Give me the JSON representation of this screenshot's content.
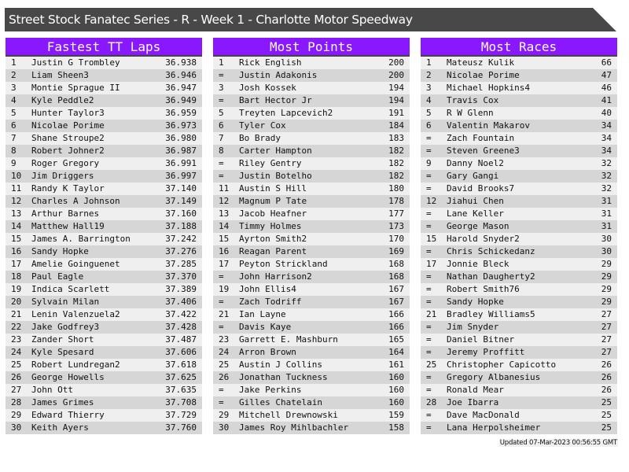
{
  "title": "Street Stock Fanatec Series - R - Week 1 - Charlotte Motor Speedway",
  "updated": "Updated 07-Mar-2023 00:56:55 GMT",
  "colors": {
    "header": "#8a18ff",
    "title_bar": "#484848"
  },
  "panels": [
    {
      "heading": "Fastest TT Laps",
      "rows": [
        [
          "1",
          "Justin G Trombley",
          "36.938"
        ],
        [
          "2",
          "Liam Sheen3",
          "36.946"
        ],
        [
          "3",
          "Montie Sprague II",
          "36.947"
        ],
        [
          "4",
          "Kyle Peddle2",
          "36.949"
        ],
        [
          "5",
          "Hunter Taylor3",
          "36.959"
        ],
        [
          "6",
          "Nicolae Porime",
          "36.973"
        ],
        [
          "7",
          "Shane Stroupe2",
          "36.980"
        ],
        [
          "8",
          "Robert Johner2",
          "36.987"
        ],
        [
          "9",
          "Roger Gregory",
          "36.991"
        ],
        [
          "10",
          "Jim Driggers",
          "36.997"
        ],
        [
          "11",
          "Randy K Taylor",
          "37.140"
        ],
        [
          "12",
          "Charles A Johnson",
          "37.149"
        ],
        [
          "13",
          "Arthur Barnes",
          "37.160"
        ],
        [
          "14",
          "Matthew Hall19",
          "37.188"
        ],
        [
          "15",
          "James A. Barrington",
          "37.242"
        ],
        [
          "16",
          "Sandy Hopke",
          "37.276"
        ],
        [
          "17",
          "Amelie Goinguenet",
          "37.285"
        ],
        [
          "18",
          "Paul Eagle",
          "37.370"
        ],
        [
          "19",
          "Indica Scarlett",
          "37.389"
        ],
        [
          "20",
          "Sylvain Milan",
          "37.406"
        ],
        [
          "21",
          "Lenin Valenzuela2",
          "37.422"
        ],
        [
          "22",
          "Jake Godfrey3",
          "37.428"
        ],
        [
          "23",
          "Zander Short",
          "37.487"
        ],
        [
          "24",
          "Kyle Spesard",
          "37.606"
        ],
        [
          "25",
          "Robert Lundregan2",
          "37.618"
        ],
        [
          "26",
          "George Howells",
          "37.625"
        ],
        [
          "27",
          "John Ott",
          "37.635"
        ],
        [
          "28",
          "James Grimes",
          "37.708"
        ],
        [
          "29",
          "Edward Thierry",
          "37.729"
        ],
        [
          "30",
          "Keith Ayers",
          "37.760"
        ]
      ]
    },
    {
      "heading": "Most Points",
      "rows": [
        [
          "1",
          "Rick English",
          "200"
        ],
        [
          "=",
          "Justin Adakonis",
          "200"
        ],
        [
          "3",
          "Josh Kossek",
          "194"
        ],
        [
          "=",
          "Bart Hector Jr",
          "194"
        ],
        [
          "5",
          "Treyten Lapcevich2",
          "191"
        ],
        [
          "6",
          "Tyler Cox",
          "184"
        ],
        [
          "7",
          "Bo Brady",
          "183"
        ],
        [
          "8",
          "Carter Hampton",
          "182"
        ],
        [
          "=",
          "Riley Gentry",
          "182"
        ],
        [
          "=",
          "Justin Botelho",
          "182"
        ],
        [
          "11",
          "Austin S Hill",
          "180"
        ],
        [
          "12",
          "Magnum P Tate",
          "178"
        ],
        [
          "13",
          "Jacob Heafner",
          "177"
        ],
        [
          "14",
          "Timmy Holmes",
          "173"
        ],
        [
          "15",
          "Ayrton Smith2",
          "170"
        ],
        [
          "16",
          "Reagan Parent",
          "169"
        ],
        [
          "17",
          "Peyton Strickland",
          "168"
        ],
        [
          "=",
          "John Harrison2",
          "168"
        ],
        [
          "19",
          "John Ellis4",
          "167"
        ],
        [
          "=",
          "Zach Todriff",
          "167"
        ],
        [
          "21",
          "Ian Layne",
          "166"
        ],
        [
          "=",
          "Davis Kaye",
          "166"
        ],
        [
          "23",
          "Garrett E. Mashburn",
          "165"
        ],
        [
          "24",
          "Arron Brown",
          "164"
        ],
        [
          "25",
          "Austin J Collins",
          "161"
        ],
        [
          "26",
          "Jonathan Tuckness",
          "160"
        ],
        [
          "=",
          "Jake Perkins",
          "160"
        ],
        [
          "=",
          "Gilles Chatelain",
          "160"
        ],
        [
          "29",
          "Mitchell Drewnowski",
          "159"
        ],
        [
          "30",
          "James Roy Mihlbachler",
          "158"
        ]
      ]
    },
    {
      "heading": "Most Races",
      "rows": [
        [
          "1",
          "Mateusz Kulik",
          "66"
        ],
        [
          "2",
          "Nicolae Porime",
          "47"
        ],
        [
          "3",
          "Michael Hopkins4",
          "46"
        ],
        [
          "4",
          "Travis Cox",
          "41"
        ],
        [
          "5",
          "R W Glenn",
          "40"
        ],
        [
          "6",
          "Valentin Makarov",
          "34"
        ],
        [
          "=",
          "Zach Fountain",
          "34"
        ],
        [
          "=",
          "Steven Greene3",
          "34"
        ],
        [
          "9",
          "Danny Noel2",
          "32"
        ],
        [
          "=",
          "Gary Gangi",
          "32"
        ],
        [
          "=",
          "David Brooks7",
          "32"
        ],
        [
          "12",
          "Jiahui Chen",
          "31"
        ],
        [
          "=",
          "Lane Keller",
          "31"
        ],
        [
          "=",
          "George Mason",
          "31"
        ],
        [
          "15",
          "Harold Snyder2",
          "30"
        ],
        [
          "=",
          "Chris Schickedanz",
          "30"
        ],
        [
          "17",
          "Jonnie Bleck",
          "29"
        ],
        [
          "=",
          "Nathan Daugherty2",
          "29"
        ],
        [
          "=",
          "Robert Smith76",
          "29"
        ],
        [
          "=",
          "Sandy Hopke",
          "29"
        ],
        [
          "21",
          "Bradley Williams5",
          "27"
        ],
        [
          "=",
          "Jim Snyder",
          "27"
        ],
        [
          "=",
          "Daniel Bitner",
          "27"
        ],
        [
          "=",
          "Jeremy Proffitt",
          "27"
        ],
        [
          "25",
          "Christopher Capicotto",
          "26"
        ],
        [
          "=",
          "Gregory Albanesius",
          "26"
        ],
        [
          "=",
          "Ronald Mear",
          "26"
        ],
        [
          "28",
          "Joe Ibarra",
          "25"
        ],
        [
          "=",
          "Dave MacDonald",
          "25"
        ],
        [
          "=",
          "Lana Herpolsheimer",
          "25"
        ]
      ]
    }
  ]
}
